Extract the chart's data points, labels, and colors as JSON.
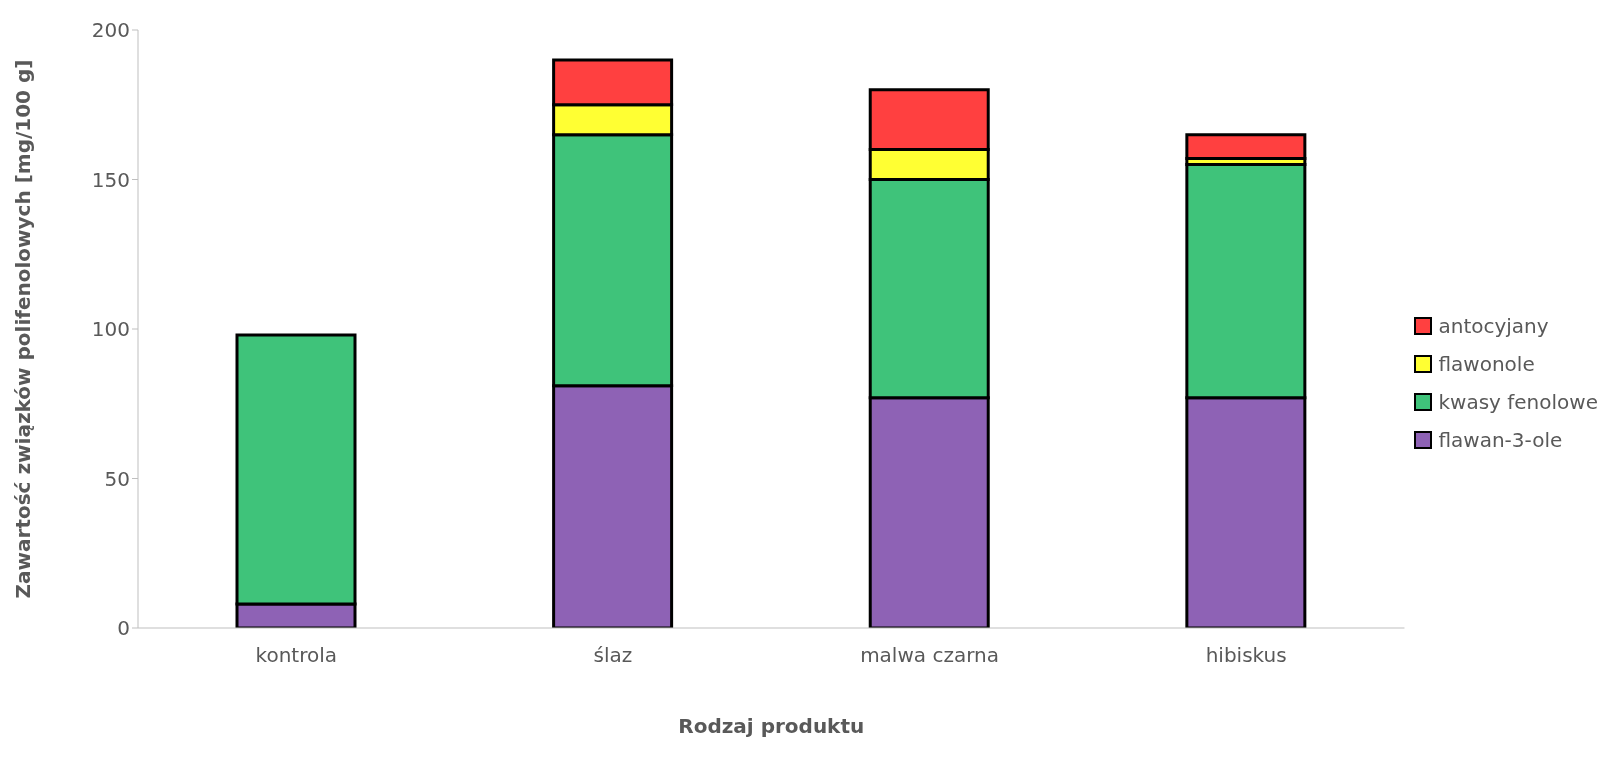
{
  "chart_data": {
    "type": "bar",
    "stacked": true,
    "xlabel": "Rodzaj produktu",
    "ylabel": "Zawartość związków polifenolowych [mg/100 g]",
    "categories": [
      "kontrola",
      "ślaz",
      "malwa czarna",
      "hibiskus"
    ],
    "series": [
      {
        "name": "flawan-3-ole",
        "color": "#8e62b5",
        "values": [
          8,
          81,
          77,
          77
        ]
      },
      {
        "name": "kwasy fenolowe",
        "color": "#3fc37a",
        "values": [
          90,
          84,
          73,
          78
        ]
      },
      {
        "name": "flawonole",
        "color": "#ffff33",
        "values": [
          0,
          10,
          10,
          2
        ]
      },
      {
        "name": "antocyjany",
        "color": "#ff4040",
        "values": [
          0,
          15,
          20,
          8
        ]
      }
    ],
    "ylim": [
      0,
      200
    ],
    "yticks": [
      0,
      50,
      100,
      150,
      200
    ],
    "grid": false,
    "legend": "right"
  }
}
